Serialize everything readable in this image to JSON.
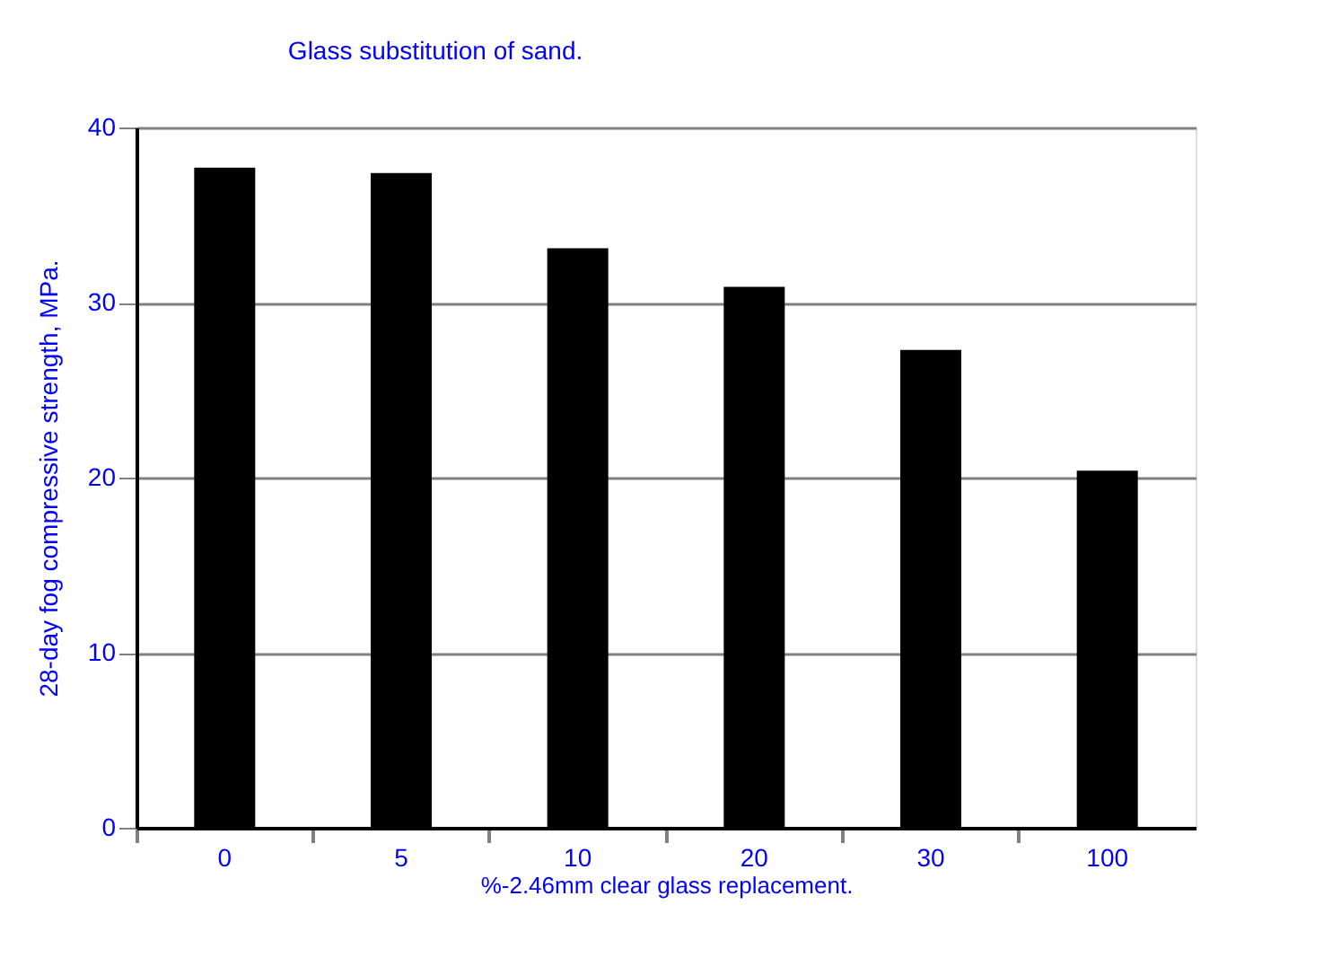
{
  "chart_data": {
    "type": "bar",
    "title": "Glass substitution of sand.",
    "xlabel": "%-2.46mm clear glass replacement.",
    "ylabel": "28-day fog compressive strength, MPa.",
    "categories": [
      "0",
      "5",
      "10",
      "20",
      "30",
      "100"
    ],
    "values": [
      37.7,
      37.4,
      33.1,
      30.9,
      27.3,
      20.4
    ],
    "color": "#000000",
    "ylim": [
      0,
      40
    ],
    "yticks": [
      0,
      10,
      20,
      30,
      40
    ],
    "grid": "y"
  }
}
